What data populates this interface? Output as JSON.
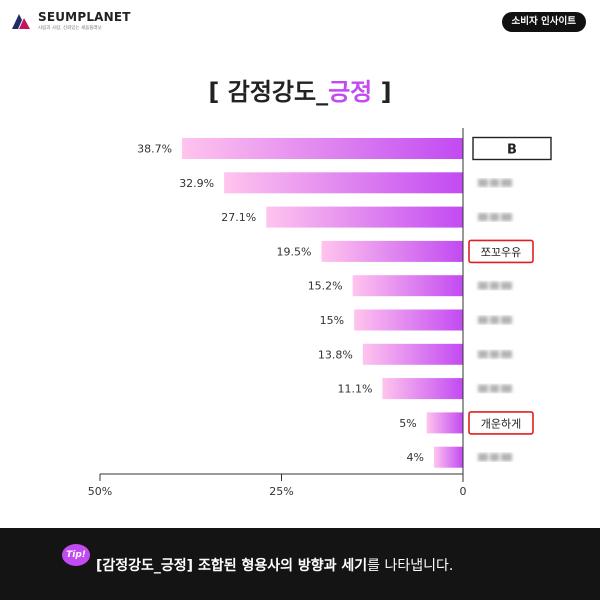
{
  "brand": {
    "name": "SEUMPLANET",
    "tagline": "사람과 사람, 신뢰있는 세움플래닛"
  },
  "header_badge": "소비자 인사이트",
  "title": {
    "open": "[ 감정강도_",
    "highlight": "긍정",
    "close": " ]"
  },
  "colors": {
    "accent": "#c24af2",
    "bar_start": "#ffc4ee",
    "bar_end": "#c24af2",
    "highlight_border": "#e02020"
  },
  "chart_data": {
    "type": "bar",
    "orientation": "horizontal",
    "direction": "right-to-left",
    "xlim": [
      0,
      50
    ],
    "x_ticks": [
      "50%",
      "25%",
      "0"
    ],
    "items": [
      {
        "label": "B",
        "value": 38.7,
        "value_label": "38.7%",
        "label_style": "boxed",
        "blurred": false
      },
      {
        "label": "",
        "value": 32.9,
        "value_label": "32.9%",
        "label_style": "blurred",
        "blurred": true
      },
      {
        "label": "",
        "value": 27.1,
        "value_label": "27.1%",
        "label_style": "blurred",
        "blurred": true
      },
      {
        "label": "쪼꼬우유",
        "value": 19.5,
        "value_label": "19.5%",
        "label_style": "highlight",
        "blurred": false
      },
      {
        "label": "",
        "value": 15.2,
        "value_label": "15.2%",
        "label_style": "blurred",
        "blurred": true
      },
      {
        "label": "",
        "value": 15,
        "value_label": "15%",
        "label_style": "blurred",
        "blurred": true
      },
      {
        "label": "",
        "value": 13.8,
        "value_label": "13.8%",
        "label_style": "blurred",
        "blurred": true
      },
      {
        "label": "",
        "value": 11.1,
        "value_label": "11.1%",
        "label_style": "blurred",
        "blurred": true
      },
      {
        "label": "개운하게",
        "value": 5,
        "value_label": "5%",
        "label_style": "highlight",
        "blurred": false
      },
      {
        "label": "",
        "value": 4,
        "value_label": "4%",
        "label_style": "blurred",
        "blurred": true
      }
    ]
  },
  "footer": {
    "tip_label": "Tip!",
    "text_bold": "[감정강도_긍정] 조합된 형용사의 방향과 세기",
    "text_rest": "를 나타냅니다."
  }
}
